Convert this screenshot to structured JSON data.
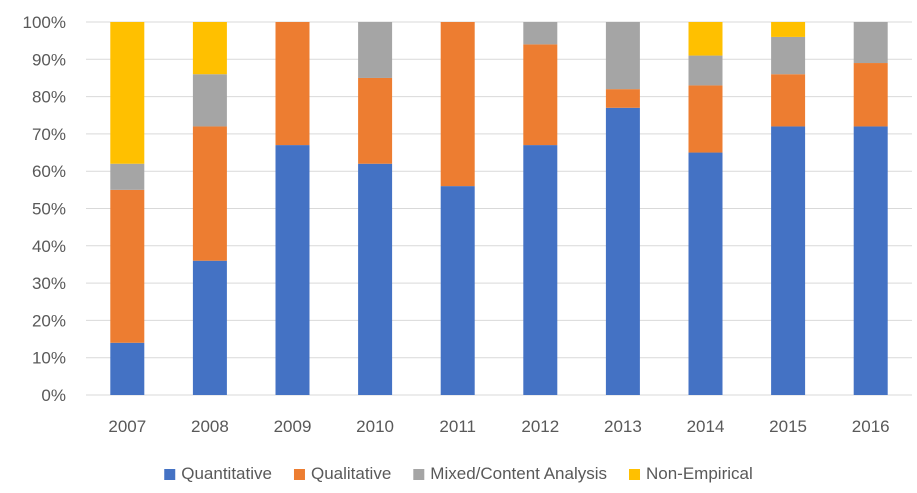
{
  "colors": {
    "quantitative": "#4472C4",
    "qualitative": "#ED7D31",
    "mixed": "#A5A5A5",
    "non_empirical": "#FFC000",
    "grid": "#D9D9D9",
    "axis_text": "#595959"
  },
  "chart_data": {
    "type": "bar",
    "stacked": "percent",
    "title": "",
    "xlabel": "",
    "ylabel": "",
    "ylim": [
      0,
      100
    ],
    "y_ticks": [
      "0%",
      "10%",
      "20%",
      "30%",
      "40%",
      "50%",
      "60%",
      "70%",
      "80%",
      "90%",
      "100%"
    ],
    "grid": true,
    "legend_position": "bottom",
    "categories": [
      "2007",
      "2008",
      "2009",
      "2010",
      "2011",
      "2012",
      "2013",
      "2014",
      "2015",
      "2016"
    ],
    "series": [
      {
        "name": "Quantitative",
        "color": "#4472C4",
        "values": [
          14,
          36,
          67,
          62,
          56,
          67,
          77,
          65,
          72,
          72
        ]
      },
      {
        "name": "Qualitative",
        "color": "#ED7D31",
        "values": [
          41,
          36,
          33,
          23,
          44,
          27,
          5,
          18,
          14,
          17
        ]
      },
      {
        "name": "Mixed/Content Analysis",
        "color": "#A5A5A5",
        "values": [
          7,
          14,
          0,
          15,
          0,
          6,
          18,
          8,
          10,
          11
        ]
      },
      {
        "name": "Non-Empirical",
        "color": "#FFC000",
        "values": [
          38,
          14,
          0,
          0,
          0,
          0,
          0,
          9,
          4,
          0
        ]
      }
    ]
  }
}
